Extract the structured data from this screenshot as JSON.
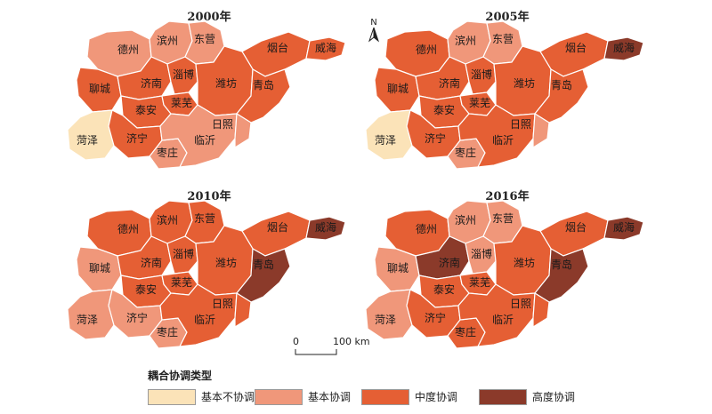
{
  "colors": {
    "基本不协调": "#fbe3b8",
    "基本协调": "#f0977a",
    "中度协调": "#e55f34",
    "高度协调": "#8b3a2a",
    "border": "#ffffff",
    "outline": "#9a9a9a"
  },
  "cities": [
    "德州",
    "滨州",
    "东营",
    "烟台",
    "威海",
    "聊城",
    "济南",
    "淄博",
    "潍坊",
    "青岛",
    "泰安",
    "莱芜",
    "菏泽",
    "济宁",
    "枣庄",
    "临沂",
    "日照"
  ],
  "panels": [
    {
      "title": "2000年",
      "classes": {
        "德州": "基本协调",
        "滨州": "基本协调",
        "东营": "基本协调",
        "烟台": "中度协调",
        "威海": "中度协调",
        "聊城": "中度协调",
        "济南": "中度协调",
        "淄博": "中度协调",
        "潍坊": "中度协调",
        "青岛": "中度协调",
        "泰安": "中度协调",
        "莱芜": "中度协调",
        "菏泽": "基本不协调",
        "济宁": "中度协调",
        "枣庄": "基本协调",
        "临沂": "基本协调",
        "日照": "基本协调"
      }
    },
    {
      "title": "2005年",
      "classes": {
        "德州": "中度协调",
        "滨州": "基本协调",
        "东营": "基本协调",
        "烟台": "中度协调",
        "威海": "高度协调",
        "聊城": "中度协调",
        "济南": "中度协调",
        "淄博": "中度协调",
        "潍坊": "中度协调",
        "青岛": "中度协调",
        "泰安": "中度协调",
        "莱芜": "中度协调",
        "菏泽": "基本不协调",
        "济宁": "中度协调",
        "枣庄": "基本协调",
        "临沂": "中度协调",
        "日照": "基本协调"
      }
    },
    {
      "title": "2010年",
      "classes": {
        "德州": "中度协调",
        "滨州": "中度协调",
        "东营": "中度协调",
        "烟台": "中度协调",
        "威海": "高度协调",
        "聊城": "基本协调",
        "济南": "中度协调",
        "淄博": "中度协调",
        "潍坊": "中度协调",
        "青岛": "高度协调",
        "泰安": "中度协调",
        "莱芜": "中度协调",
        "菏泽": "基本协调",
        "济宁": "基本协调",
        "枣庄": "基本协调",
        "临沂": "中度协调",
        "日照": "中度协调"
      }
    },
    {
      "title": "2016年",
      "classes": {
        "德州": "中度协调",
        "滨州": "基本协调",
        "东营": "基本协调",
        "烟台": "中度协调",
        "威海": "高度协调",
        "聊城": "基本协调",
        "济南": "高度协调",
        "淄博": "基本协调",
        "潍坊": "中度协调",
        "青岛": "高度协调",
        "泰安": "中度协调",
        "莱芜": "中度协调",
        "菏泽": "基本协调",
        "济宁": "中度协调",
        "枣庄": "中度协调",
        "临沂": "中度协调",
        "日照": "中度协调"
      }
    }
  ],
  "north_arrow": {
    "letter": "N"
  },
  "scale_bar": {
    "start_label": "0",
    "end_label": "100 km"
  },
  "legend": {
    "title": "耦合协调类型",
    "items": [
      {
        "label": "基本不协调",
        "color": "#fbe3b8"
      },
      {
        "label": "基本协调",
        "color": "#f0977a"
      },
      {
        "label": "中度协调",
        "color": "#e55f34"
      },
      {
        "label": "高度协调",
        "color": "#8b3a2a"
      }
    ]
  }
}
